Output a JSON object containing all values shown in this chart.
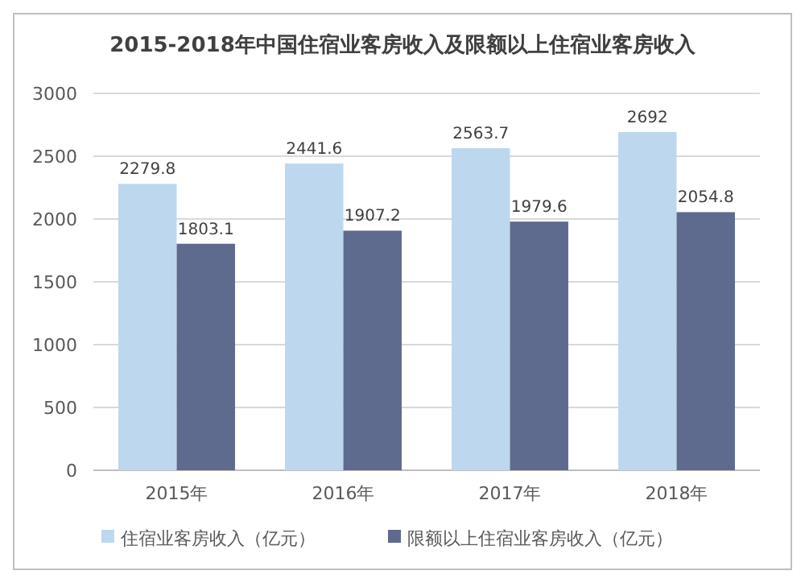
{
  "chart_data": {
    "type": "bar",
    "title": "2015-2018年中国住宿业客房收入及限额以上住宿业客房收入",
    "categories": [
      "2015年",
      "2016年",
      "2017年",
      "2018年"
    ],
    "series": [
      {
        "name": "住宿业客房收入（亿元）",
        "color": "#bdd7ee",
        "values": [
          2279.8,
          2441.6,
          2563.7,
          2692
        ]
      },
      {
        "name": "限额以上住宿业客房收入（亿元）",
        "color": "#5e6a8e",
        "values": [
          1803.1,
          1907.2,
          1979.6,
          2054.8
        ]
      }
    ],
    "ylim": [
      0,
      3000
    ],
    "yticks": [
      0,
      500,
      1000,
      1500,
      2000,
      2500,
      3000
    ],
    "grid": "y",
    "legend": "bottom",
    "data_labels": true
  }
}
